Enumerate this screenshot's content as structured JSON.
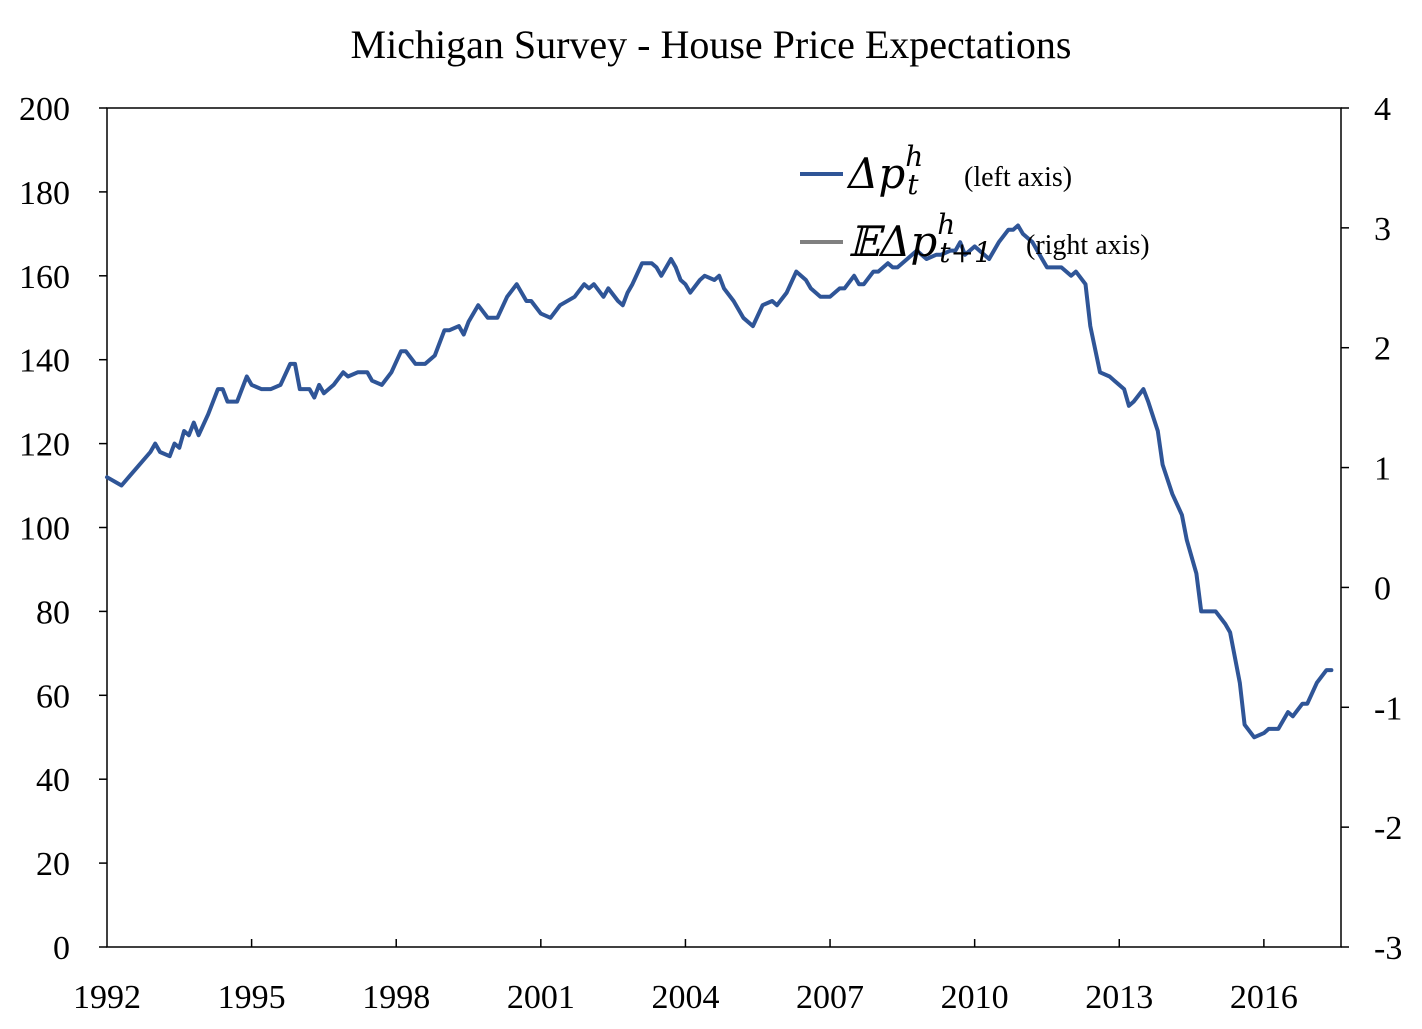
{
  "chart_data": {
    "type": "line",
    "title": "Michigan Survey - House Price Expectations",
    "x_ticks": [
      "1992",
      "1995",
      "1998",
      "2001",
      "2004",
      "2007",
      "2010",
      "2013",
      "2016"
    ],
    "xlim": [
      1992,
      2017.6
    ],
    "y_left": {
      "ticks": [
        "0",
        "20",
        "40",
        "60",
        "80",
        "100",
        "120",
        "140",
        "160",
        "180",
        "200"
      ],
      "lim": [
        0,
        200
      ]
    },
    "y_right": {
      "ticks": [
        "-3",
        "-2",
        "-1",
        "0",
        "1",
        "2",
        "3",
        "4"
      ],
      "lim": [
        -3,
        4
      ]
    },
    "grid": false,
    "legend_position": "top-right",
    "series": [
      {
        "name": "Δp_t^h",
        "legend_main": "Δp",
        "legend_sup": "h",
        "legend_sub": "t",
        "legend_note": "(left axis)",
        "axis": "left",
        "color": "#2f5597",
        "points": [
          [
            1992.0,
            112
          ],
          [
            1992.3,
            110
          ],
          [
            1992.6,
            114
          ],
          [
            1992.9,
            118
          ],
          [
            1993.0,
            120
          ],
          [
            1993.1,
            118
          ],
          [
            1993.3,
            117
          ],
          [
            1993.4,
            120
          ],
          [
            1993.5,
            119
          ],
          [
            1993.6,
            123
          ],
          [
            1993.7,
            122
          ],
          [
            1993.8,
            125
          ],
          [
            1993.9,
            122
          ],
          [
            1994.1,
            127
          ],
          [
            1994.3,
            133
          ],
          [
            1994.4,
            133
          ],
          [
            1994.5,
            130
          ],
          [
            1994.7,
            130
          ],
          [
            1994.9,
            136
          ],
          [
            1995.0,
            134
          ],
          [
            1995.2,
            133
          ],
          [
            1995.4,
            133
          ],
          [
            1995.6,
            134
          ],
          [
            1995.8,
            139
          ],
          [
            1995.9,
            139
          ],
          [
            1996.0,
            133
          ],
          [
            1996.2,
            133
          ],
          [
            1996.3,
            131
          ],
          [
            1996.4,
            134
          ],
          [
            1996.5,
            132
          ],
          [
            1996.7,
            134
          ],
          [
            1996.9,
            137
          ],
          [
            1997.0,
            136
          ],
          [
            1997.2,
            137
          ],
          [
            1997.4,
            137
          ],
          [
            1997.5,
            135
          ],
          [
            1997.7,
            134
          ],
          [
            1997.9,
            137
          ],
          [
            1998.1,
            142
          ],
          [
            1998.2,
            142
          ],
          [
            1998.4,
            139
          ],
          [
            1998.6,
            139
          ],
          [
            1998.8,
            141
          ],
          [
            1999.0,
            147
          ],
          [
            1999.1,
            147
          ],
          [
            1999.3,
            148
          ],
          [
            1999.4,
            146
          ],
          [
            1999.5,
            149
          ],
          [
            1999.7,
            153
          ],
          [
            1999.9,
            150
          ],
          [
            2000.1,
            150
          ],
          [
            2000.3,
            155
          ],
          [
            2000.5,
            158
          ],
          [
            2000.7,
            154
          ],
          [
            2000.8,
            154
          ],
          [
            2001.0,
            151
          ],
          [
            2001.2,
            150
          ],
          [
            2001.4,
            153
          ],
          [
            2001.7,
            155
          ],
          [
            2001.9,
            158
          ],
          [
            2002.0,
            157
          ],
          [
            2002.1,
            158
          ],
          [
            2002.3,
            155
          ],
          [
            2002.4,
            157
          ],
          [
            2002.6,
            154
          ],
          [
            2002.7,
            153
          ],
          [
            2002.8,
            156
          ],
          [
            2002.9,
            158
          ],
          [
            2003.1,
            163
          ],
          [
            2003.3,
            163
          ],
          [
            2003.4,
            162
          ],
          [
            2003.5,
            160
          ],
          [
            2003.7,
            164
          ],
          [
            2003.8,
            162
          ],
          [
            2003.9,
            159
          ],
          [
            2004.0,
            158
          ],
          [
            2004.1,
            156
          ],
          [
            2004.3,
            159
          ],
          [
            2004.4,
            160
          ],
          [
            2004.6,
            159
          ],
          [
            2004.7,
            160
          ],
          [
            2004.8,
            157
          ],
          [
            2005.0,
            154
          ],
          [
            2005.2,
            150
          ],
          [
            2005.4,
            148
          ],
          [
            2005.6,
            153
          ],
          [
            2005.8,
            154
          ],
          [
            2005.9,
            153
          ],
          [
            2006.1,
            156
          ],
          [
            2006.3,
            161
          ],
          [
            2006.5,
            159
          ],
          [
            2006.6,
            157
          ],
          [
            2006.8,
            155
          ],
          [
            2007.0,
            155
          ],
          [
            2007.2,
            157
          ],
          [
            2007.3,
            157
          ],
          [
            2007.5,
            160
          ],
          [
            2007.6,
            158
          ],
          [
            2007.7,
            158
          ],
          [
            2007.9,
            161
          ],
          [
            2008.0,
            161
          ],
          [
            2008.2,
            163
          ],
          [
            2008.3,
            162
          ],
          [
            2008.4,
            162
          ],
          [
            2008.6,
            164
          ],
          [
            2008.8,
            166
          ],
          [
            2008.9,
            165
          ],
          [
            2009.0,
            164
          ],
          [
            2009.2,
            165
          ],
          [
            2009.3,
            165
          ],
          [
            2009.5,
            166
          ],
          [
            2009.6,
            166
          ],
          [
            2009.7,
            168
          ],
          [
            2009.8,
            165
          ],
          [
            2010.0,
            167
          ],
          [
            2010.1,
            166
          ],
          [
            2010.3,
            164
          ],
          [
            2010.5,
            168
          ],
          [
            2010.7,
            171
          ],
          [
            2010.8,
            171
          ],
          [
            2010.9,
            172
          ],
          [
            2011.0,
            170
          ],
          [
            2011.2,
            168
          ],
          [
            2011.4,
            164
          ],
          [
            2011.5,
            162
          ],
          [
            2011.7,
            162
          ],
          [
            2011.8,
            162
          ],
          [
            2012.0,
            160
          ],
          [
            2012.1,
            161
          ],
          [
            2012.3,
            158
          ],
          [
            2012.4,
            148
          ],
          [
            2012.6,
            137
          ],
          [
            2012.8,
            136
          ],
          [
            2012.9,
            135
          ],
          [
            2013.1,
            133
          ],
          [
            2013.2,
            129
          ],
          [
            2013.3,
            130
          ],
          [
            2013.5,
            133
          ],
          [
            2013.6,
            130
          ],
          [
            2013.8,
            123
          ],
          [
            2013.9,
            115
          ],
          [
            2014.1,
            108
          ],
          [
            2014.3,
            103
          ],
          [
            2014.4,
            97
          ],
          [
            2014.6,
            89
          ],
          [
            2014.7,
            80
          ],
          [
            2014.9,
            80
          ],
          [
            2015.0,
            80
          ],
          [
            2015.2,
            77
          ],
          [
            2015.3,
            75
          ],
          [
            2015.5,
            63
          ],
          [
            2015.6,
            53
          ],
          [
            2015.8,
            50
          ],
          [
            2016.0,
            51
          ],
          [
            2016.1,
            52
          ],
          [
            2016.3,
            52
          ],
          [
            2016.5,
            56
          ],
          [
            2016.6,
            55
          ],
          [
            2016.8,
            58
          ],
          [
            2016.9,
            58
          ],
          [
            2017.1,
            63
          ],
          [
            2017.3,
            66
          ],
          [
            2017.4,
            66
          ]
        ]
      },
      {
        "name": "𝔼Δp_{t+1}^h",
        "legend_main": "𝔼Δp",
        "legend_sup": "h",
        "legend_sub": "t+1",
        "legend_note": "(right axis)",
        "axis": "right",
        "color": "#808080",
        "points": []
      }
    ]
  }
}
